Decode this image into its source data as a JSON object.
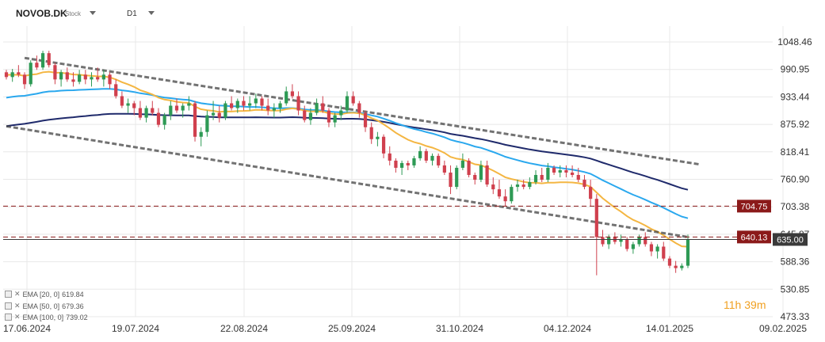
{
  "toolbar": {
    "symbol": "NOVOB.DK",
    "type": "Stock",
    "timeframe": "D1"
  },
  "legend": [
    {
      "label": "EMA [20, 0]",
      "value": "619.84"
    },
    {
      "label": "EMA [50, 0]",
      "value": "679.36"
    },
    {
      "label": "EMA [100, 0]",
      "value": "739.02"
    }
  ],
  "countdown": {
    "hours": "11",
    "h_unit": "h",
    "minutes": "39",
    "m_unit": "m"
  },
  "chart_data": {
    "type": "candlestick",
    "x_ticks": [
      "17.06.2024",
      "19.07.2024",
      "22.08.2024",
      "25.09.2024",
      "31.10.2024",
      "04.12.2024",
      "14.01.2025",
      "09.02.2025"
    ],
    "y_ticks": [
      "1048.46",
      "990.95",
      "933.44",
      "875.92",
      "818.41",
      "760.90",
      "703.38",
      "645.87",
      "588.36",
      "530.85",
      "473.33"
    ],
    "ylim": [
      473.33,
      1048.46
    ],
    "price_labels": [
      {
        "label": "704.75",
        "value": 704.75,
        "color": "#8b1a1a",
        "style": "dashed"
      },
      {
        "label": "640.13",
        "value": 640.13,
        "color": "#8b1a1a",
        "style": "dashed"
      },
      {
        "label": "635.00",
        "value": 635.0,
        "color": "#3a3a3a",
        "style": "solid"
      }
    ],
    "ohlc": [
      [
        985,
        990,
        970,
        975
      ],
      [
        975,
        992,
        965,
        985
      ],
      [
        985,
        1000,
        975,
        980
      ],
      [
        980,
        985,
        950,
        960
      ],
      [
        960,
        1010,
        955,
        1005
      ],
      [
        1005,
        1020,
        990,
        995
      ],
      [
        995,
        1030,
        990,
        1025
      ],
      [
        1025,
        1030,
        995,
        1000
      ],
      [
        1000,
        1005,
        960,
        970
      ],
      [
        970,
        990,
        955,
        985
      ],
      [
        985,
        995,
        965,
        970
      ],
      [
        970,
        985,
        955,
        965
      ],
      [
        965,
        990,
        960,
        980
      ],
      [
        980,
        990,
        960,
        970
      ],
      [
        970,
        985,
        955,
        975
      ],
      [
        975,
        995,
        965,
        970
      ],
      [
        970,
        990,
        955,
        980
      ],
      [
        980,
        985,
        950,
        960
      ],
      [
        960,
        970,
        930,
        935
      ],
      [
        935,
        945,
        910,
        915
      ],
      [
        915,
        930,
        900,
        920
      ],
      [
        920,
        925,
        895,
        910
      ],
      [
        910,
        925,
        885,
        890
      ],
      [
        890,
        915,
        880,
        910
      ],
      [
        910,
        925,
        895,
        900
      ],
      [
        900,
        910,
        870,
        875
      ],
      [
        875,
        900,
        865,
        895
      ],
      [
        895,
        925,
        885,
        915
      ],
      [
        915,
        930,
        900,
        905
      ],
      [
        905,
        920,
        890,
        915
      ],
      [
        915,
        935,
        905,
        920
      ],
      [
        920,
        925,
        840,
        850
      ],
      [
        850,
        870,
        830,
        860
      ],
      [
        860,
        905,
        850,
        895
      ],
      [
        895,
        925,
        885,
        900
      ],
      [
        900,
        915,
        880,
        890
      ],
      [
        890,
        925,
        885,
        920
      ],
      [
        920,
        935,
        905,
        910
      ],
      [
        910,
        930,
        900,
        925
      ],
      [
        925,
        935,
        905,
        915
      ],
      [
        915,
        935,
        905,
        920
      ],
      [
        920,
        940,
        910,
        930
      ],
      [
        930,
        935,
        905,
        915
      ],
      [
        915,
        930,
        895,
        905
      ],
      [
        905,
        920,
        890,
        910
      ],
      [
        910,
        925,
        900,
        920
      ],
      [
        920,
        955,
        915,
        945
      ],
      [
        945,
        960,
        930,
        935
      ],
      [
        935,
        945,
        895,
        905
      ],
      [
        905,
        915,
        880,
        885
      ],
      [
        885,
        910,
        875,
        900
      ],
      [
        900,
        930,
        895,
        920
      ],
      [
        920,
        935,
        900,
        905
      ],
      [
        905,
        910,
        870,
        880
      ],
      [
        880,
        900,
        870,
        895
      ],
      [
        895,
        915,
        885,
        905
      ],
      [
        905,
        945,
        900,
        935
      ],
      [
        935,
        945,
        915,
        920
      ],
      [
        920,
        925,
        890,
        900
      ],
      [
        900,
        905,
        860,
        870
      ],
      [
        870,
        880,
        835,
        845
      ],
      [
        845,
        860,
        830,
        850
      ],
      [
        850,
        855,
        805,
        815
      ],
      [
        815,
        830,
        790,
        800
      ],
      [
        800,
        805,
        775,
        785
      ],
      [
        785,
        800,
        770,
        795
      ],
      [
        795,
        800,
        780,
        790
      ],
      [
        790,
        810,
        785,
        805
      ],
      [
        805,
        830,
        800,
        820
      ],
      [
        820,
        825,
        795,
        800
      ],
      [
        800,
        815,
        790,
        810
      ],
      [
        810,
        815,
        785,
        790
      ],
      [
        790,
        800,
        770,
        775
      ],
      [
        775,
        790,
        730,
        745
      ],
      [
        745,
        790,
        740,
        785
      ],
      [
        785,
        815,
        780,
        800
      ],
      [
        800,
        805,
        765,
        770
      ],
      [
        770,
        775,
        750,
        760
      ],
      [
        760,
        800,
        755,
        790
      ],
      [
        790,
        800,
        745,
        750
      ],
      [
        750,
        765,
        730,
        740
      ],
      [
        740,
        760,
        720,
        725
      ],
      [
        725,
        740,
        705,
        715
      ],
      [
        715,
        750,
        710,
        745
      ],
      [
        745,
        760,
        735,
        750
      ],
      [
        750,
        760,
        740,
        745
      ],
      [
        745,
        765,
        740,
        755
      ],
      [
        755,
        780,
        750,
        770
      ],
      [
        770,
        785,
        755,
        760
      ],
      [
        760,
        795,
        755,
        785
      ],
      [
        785,
        790,
        770,
        775
      ],
      [
        775,
        790,
        765,
        780
      ],
      [
        780,
        790,
        765,
        775
      ],
      [
        775,
        790,
        765,
        770
      ],
      [
        770,
        785,
        755,
        760
      ],
      [
        760,
        770,
        740,
        745
      ],
      [
        745,
        760,
        705,
        720
      ],
      [
        720,
        730,
        560,
        640
      ],
      [
        640,
        655,
        620,
        625
      ],
      [
        625,
        645,
        615,
        640
      ],
      [
        640,
        650,
        625,
        630
      ],
      [
        630,
        645,
        620,
        635
      ],
      [
        635,
        640,
        610,
        615
      ],
      [
        615,
        630,
        605,
        625
      ],
      [
        625,
        645,
        620,
        640
      ],
      [
        640,
        650,
        620,
        625
      ],
      [
        625,
        630,
        600,
        610
      ],
      [
        610,
        625,
        595,
        620
      ],
      [
        620,
        630,
        590,
        595
      ],
      [
        595,
        600,
        575,
        580
      ],
      [
        580,
        590,
        565,
        575
      ],
      [
        575,
        585,
        570,
        580
      ],
      [
        580,
        645,
        575,
        635
      ]
    ],
    "series": [
      {
        "name": "EMA [20, 0]",
        "value": 619.84,
        "color": "#f4b642"
      },
      {
        "name": "EMA [50, 0]",
        "value": 679.36,
        "color": "#2aa8ee"
      },
      {
        "name": "EMA [100, 0]",
        "value": 739.02,
        "color": "#1f2a6b"
      }
    ],
    "channel": {
      "upper": [
        [
          3,
          1015
        ],
        [
          114,
          792
        ]
      ],
      "lower": [
        [
          0,
          872
        ],
        [
          112,
          640
        ]
      ]
    },
    "colors": {
      "up": "#2e9a55",
      "down": "#d0404e",
      "grid": "#e8e8e8"
    }
  }
}
